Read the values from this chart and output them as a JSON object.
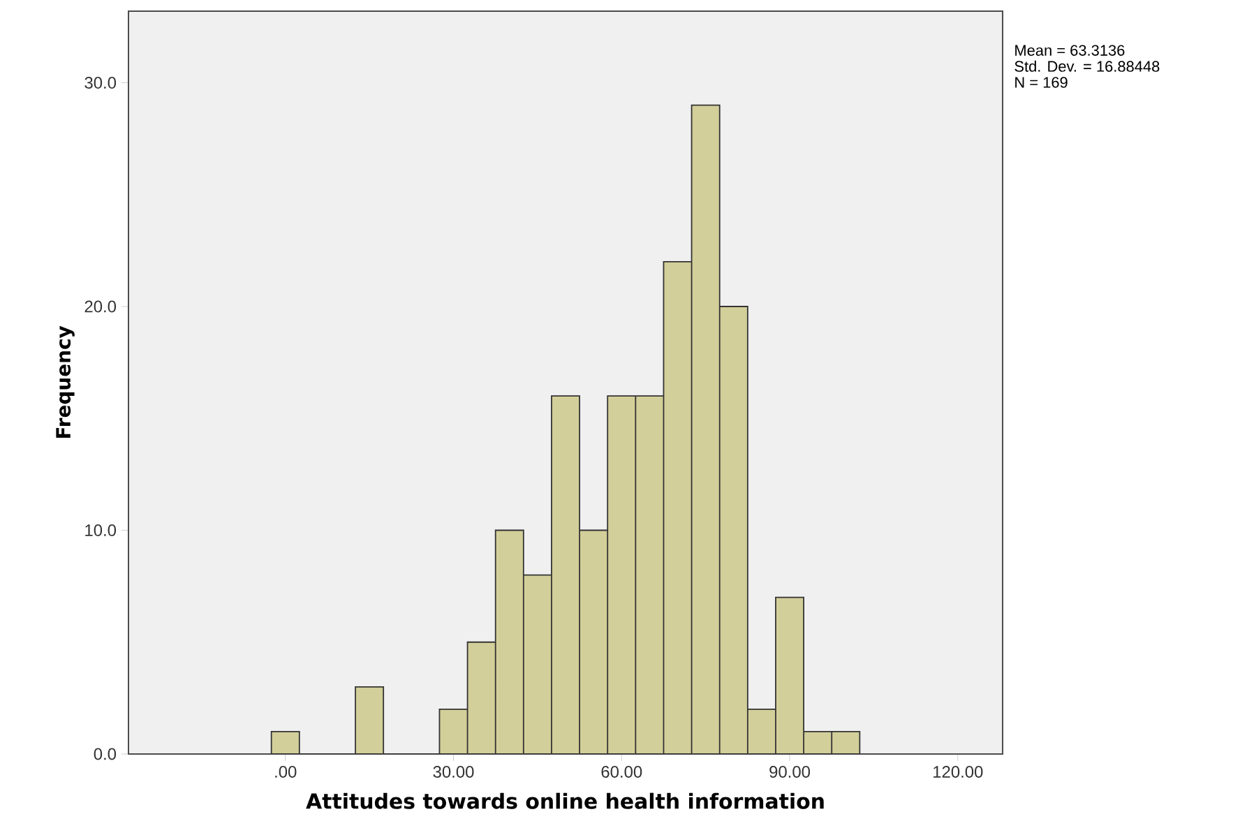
{
  "chart_data": {
    "type": "histogram",
    "xlabel": "Attitudes towards online health information",
    "ylabel": "Frequency",
    "bins": [
      -2.5,
      2.5,
      7.5,
      12.5,
      17.5,
      22.5,
      27.5,
      32.5,
      37.5,
      42.5,
      47.5,
      52.5,
      57.5,
      62.5,
      67.5,
      72.5,
      77.5,
      82.5,
      87.5,
      92.5,
      97.5,
      102.5
    ],
    "values": [
      1,
      0,
      0,
      3,
      0,
      0,
      2,
      5,
      10,
      8,
      16,
      10,
      16,
      16,
      22,
      29,
      20,
      2,
      7,
      1,
      1
    ],
    "color": "#d3cf9a",
    "xlim": [
      -28,
      128
    ],
    "ylim": [
      0,
      33.2
    ],
    "xticks": [
      {
        "value": 0,
        "label": ".00"
      },
      {
        "value": 30,
        "label": "30.00"
      },
      {
        "value": 60,
        "label": "60.00"
      },
      {
        "value": 90,
        "label": "90.00"
      },
      {
        "value": 120,
        "label": "120.00"
      }
    ],
    "yticks": [
      {
        "value": 0,
        "label": "0.0"
      },
      {
        "value": 10,
        "label": "10.0"
      },
      {
        "value": 20,
        "label": "20.0"
      },
      {
        "value": 30,
        "label": "30.0"
      }
    ],
    "annotations": [
      "Mean = 63.3136",
      "Std. Dev. = 16.88448",
      "N = 169"
    ],
    "grid": false
  }
}
